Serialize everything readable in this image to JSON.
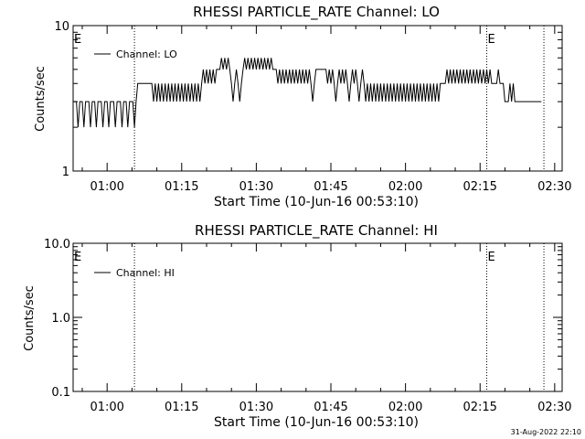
{
  "footer": {
    "stamp": "31-Aug-2022 22:10"
  },
  "chart_data": [
    {
      "type": "line",
      "title": "RHESSI PARTICLE_RATE Channel: LO",
      "xlabel": "Start Time (10-Jun-16 00:53:10)",
      "ylabel": "Counts/sec",
      "ylog": true,
      "ylim": [
        1,
        10
      ],
      "xlim": [
        "00:53:10",
        "02:31:30"
      ],
      "x_ticks": [
        "01:00",
        "01:15",
        "01:30",
        "01:45",
        "02:00",
        "02:15",
        "02:30"
      ],
      "y_ticks": [
        "1",
        "10"
      ],
      "legend": {
        "label": "Channel: LO",
        "position": "top-left"
      },
      "markers": [
        {
          "label": "E",
          "time": "00:53:10"
        },
        {
          "label": "E",
          "time": "02:16:20"
        }
      ],
      "vertical_lines": [
        "01:05:30",
        "02:16:20",
        "02:27:50"
      ],
      "series": [
        {
          "name": "Channel: LO",
          "points": [
            [
              "00:53:10",
              3
            ],
            [
              "00:53:50",
              3
            ],
            [
              "00:54:10",
              2
            ],
            [
              "00:54:30",
              3
            ],
            [
              "00:55:00",
              3
            ],
            [
              "00:55:20",
              2
            ],
            [
              "00:55:40",
              3
            ],
            [
              "00:56:20",
              3
            ],
            [
              "00:56:40",
              2
            ],
            [
              "00:57:00",
              3
            ],
            [
              "00:57:30",
              3
            ],
            [
              "00:57:50",
              2
            ],
            [
              "00:58:10",
              3
            ],
            [
              "00:58:50",
              3
            ],
            [
              "00:59:10",
              2
            ],
            [
              "00:59:30",
              3
            ],
            [
              "01:00:00",
              3
            ],
            [
              "01:00:20",
              2
            ],
            [
              "01:00:40",
              3
            ],
            [
              "01:01:20",
              3
            ],
            [
              "01:01:40",
              2
            ],
            [
              "01:02:00",
              3
            ],
            [
              "01:02:40",
              3
            ],
            [
              "01:03:00",
              2
            ],
            [
              "01:03:20",
              3
            ],
            [
              "01:03:50",
              3
            ],
            [
              "01:04:10",
              2
            ],
            [
              "01:04:30",
              3
            ],
            [
              "01:05:10",
              3
            ],
            [
              "01:05:30",
              2
            ],
            [
              "01:05:50",
              3
            ],
            [
              "01:06:10",
              4
            ],
            [
              "01:09:00",
              4
            ],
            [
              "01:09:20",
              3
            ],
            [
              "01:09:40",
              4
            ],
            [
              "01:10:00",
              3
            ],
            [
              "01:10:20",
              4
            ],
            [
              "01:10:40",
              3
            ],
            [
              "01:11:00",
              4
            ],
            [
              "01:11:20",
              3
            ],
            [
              "01:11:40",
              4
            ],
            [
              "01:12:00",
              3
            ],
            [
              "01:12:20",
              4
            ],
            [
              "01:12:40",
              3
            ],
            [
              "01:13:00",
              4
            ],
            [
              "01:13:20",
              3
            ],
            [
              "01:13:40",
              4
            ],
            [
              "01:14:00",
              3
            ],
            [
              "01:14:20",
              4
            ],
            [
              "01:14:40",
              3
            ],
            [
              "01:15:00",
              4
            ],
            [
              "01:15:20",
              3
            ],
            [
              "01:15:40",
              4
            ],
            [
              "01:16:00",
              3
            ],
            [
              "01:16:20",
              4
            ],
            [
              "01:16:40",
              3
            ],
            [
              "01:17:00",
              4
            ],
            [
              "01:17:20",
              3
            ],
            [
              "01:17:40",
              4
            ],
            [
              "01:18:00",
              3
            ],
            [
              "01:18:20",
              4
            ],
            [
              "01:18:40",
              3
            ],
            [
              "01:19:00",
              4
            ],
            [
              "01:19:20",
              5
            ],
            [
              "01:19:40",
              4
            ],
            [
              "01:20:00",
              5
            ],
            [
              "01:20:20",
              4
            ],
            [
              "01:20:40",
              5
            ],
            [
              "01:21:00",
              4
            ],
            [
              "01:21:20",
              5
            ],
            [
              "01:21:40",
              4
            ],
            [
              "01:22:00",
              5
            ],
            [
              "01:22:40",
              5
            ],
            [
              "01:23:00",
              6
            ],
            [
              "01:23:20",
              5
            ],
            [
              "01:23:40",
              6
            ],
            [
              "01:24:00",
              5
            ],
            [
              "01:24:20",
              6
            ],
            [
              "01:24:40",
              5
            ],
            [
              "01:25:00",
              4
            ],
            [
              "01:25:20",
              3
            ],
            [
              "01:25:40",
              4
            ],
            [
              "01:26:00",
              5
            ],
            [
              "01:26:20",
              4
            ],
            [
              "01:26:40",
              3
            ],
            [
              "01:27:00",
              4
            ],
            [
              "01:27:20",
              5
            ],
            [
              "01:27:40",
              6
            ],
            [
              "01:28:00",
              5
            ],
            [
              "01:28:20",
              6
            ],
            [
              "01:28:40",
              5
            ],
            [
              "01:29:00",
              6
            ],
            [
              "01:29:20",
              5
            ],
            [
              "01:29:40",
              6
            ],
            [
              "01:30:00",
              5
            ],
            [
              "01:30:20",
              6
            ],
            [
              "01:30:40",
              5
            ],
            [
              "01:31:00",
              6
            ],
            [
              "01:31:20",
              5
            ],
            [
              "01:31:40",
              6
            ],
            [
              "01:32:00",
              5
            ],
            [
              "01:32:20",
              6
            ],
            [
              "01:32:40",
              5
            ],
            [
              "01:33:00",
              6
            ],
            [
              "01:33:20",
              5
            ],
            [
              "01:34:00",
              5
            ],
            [
              "01:34:20",
              4
            ],
            [
              "01:34:40",
              5
            ],
            [
              "01:35:00",
              4
            ],
            [
              "01:35:20",
              5
            ],
            [
              "01:35:40",
              4
            ],
            [
              "01:36:00",
              5
            ],
            [
              "01:36:20",
              4
            ],
            [
              "01:36:40",
              5
            ],
            [
              "01:37:00",
              4
            ],
            [
              "01:37:20",
              5
            ],
            [
              "01:37:40",
              4
            ],
            [
              "01:38:00",
              5
            ],
            [
              "01:38:20",
              4
            ],
            [
              "01:38:40",
              5
            ],
            [
              "01:39:00",
              4
            ],
            [
              "01:39:20",
              5
            ],
            [
              "01:39:40",
              4
            ],
            [
              "01:40:00",
              5
            ],
            [
              "01:40:20",
              4
            ],
            [
              "01:40:40",
              5
            ],
            [
              "01:41:00",
              4
            ],
            [
              "01:41:20",
              3
            ],
            [
              "01:41:40",
              4
            ],
            [
              "01:42:00",
              5
            ],
            [
              "01:44:00",
              5
            ],
            [
              "01:44:20",
              4
            ],
            [
              "01:44:40",
              5
            ],
            [
              "01:45:00",
              4
            ],
            [
              "01:45:20",
              5
            ],
            [
              "01:45:40",
              4
            ],
            [
              "01:46:00",
              3
            ],
            [
              "01:46:20",
              4
            ],
            [
              "01:46:40",
              5
            ],
            [
              "01:47:00",
              4
            ],
            [
              "01:47:20",
              5
            ],
            [
              "01:47:40",
              4
            ],
            [
              "01:48:00",
              5
            ],
            [
              "01:48:20",
              4
            ],
            [
              "01:48:40",
              3
            ],
            [
              "01:49:00",
              4
            ],
            [
              "01:49:20",
              5
            ],
            [
              "01:49:40",
              4
            ],
            [
              "01:50:00",
              5
            ],
            [
              "01:50:20",
              4
            ],
            [
              "01:50:40",
              3
            ],
            [
              "01:51:00",
              4
            ],
            [
              "01:51:20",
              5
            ],
            [
              "01:51:40",
              4
            ],
            [
              "01:52:00",
              3
            ],
            [
              "01:52:20",
              4
            ],
            [
              "01:52:40",
              3
            ],
            [
              "01:53:00",
              4
            ],
            [
              "01:53:20",
              3
            ],
            [
              "01:53:40",
              4
            ],
            [
              "01:54:00",
              3
            ],
            [
              "01:54:20",
              4
            ],
            [
              "01:54:40",
              3
            ],
            [
              "01:55:00",
              4
            ],
            [
              "01:55:20",
              3
            ],
            [
              "01:55:40",
              4
            ],
            [
              "01:56:00",
              3
            ],
            [
              "01:56:20",
              4
            ],
            [
              "01:56:40",
              3
            ],
            [
              "01:57:00",
              4
            ],
            [
              "01:57:20",
              3
            ],
            [
              "01:57:40",
              4
            ],
            [
              "01:58:00",
              3
            ],
            [
              "01:58:20",
              4
            ],
            [
              "01:58:40",
              3
            ],
            [
              "01:59:00",
              4
            ],
            [
              "01:59:20",
              3
            ],
            [
              "01:59:40",
              4
            ],
            [
              "02:00:00",
              3
            ],
            [
              "02:00:20",
              4
            ],
            [
              "02:00:40",
              3
            ],
            [
              "02:01:00",
              4
            ],
            [
              "02:01:20",
              3
            ],
            [
              "02:01:40",
              4
            ],
            [
              "02:02:00",
              3
            ],
            [
              "02:02:20",
              4
            ],
            [
              "02:02:40",
              3
            ],
            [
              "02:03:00",
              4
            ],
            [
              "02:03:20",
              3
            ],
            [
              "02:03:40",
              4
            ],
            [
              "02:04:00",
              3
            ],
            [
              "02:04:20",
              4
            ],
            [
              "02:04:40",
              3
            ],
            [
              "02:05:00",
              4
            ],
            [
              "02:05:20",
              3
            ],
            [
              "02:05:40",
              4
            ],
            [
              "02:06:00",
              3
            ],
            [
              "02:06:20",
              4
            ],
            [
              "02:06:40",
              3
            ],
            [
              "02:07:00",
              4
            ],
            [
              "02:08:00",
              4
            ],
            [
              "02:08:20",
              5
            ],
            [
              "02:08:40",
              4
            ],
            [
              "02:09:00",
              5
            ],
            [
              "02:09:20",
              4
            ],
            [
              "02:09:40",
              5
            ],
            [
              "02:10:00",
              4
            ],
            [
              "02:10:20",
              5
            ],
            [
              "02:10:40",
              4
            ],
            [
              "02:11:00",
              5
            ],
            [
              "02:11:20",
              4
            ],
            [
              "02:11:40",
              5
            ],
            [
              "02:12:00",
              4
            ],
            [
              "02:12:20",
              5
            ],
            [
              "02:12:40",
              4
            ],
            [
              "02:13:00",
              5
            ],
            [
              "02:13:20",
              4
            ],
            [
              "02:13:40",
              5
            ],
            [
              "02:14:00",
              4
            ],
            [
              "02:14:20",
              5
            ],
            [
              "02:14:40",
              4
            ],
            [
              "02:15:00",
              5
            ],
            [
              "02:15:20",
              4
            ],
            [
              "02:15:40",
              5
            ],
            [
              "02:16:00",
              4
            ],
            [
              "02:16:20",
              5
            ],
            [
              "02:16:40",
              4
            ],
            [
              "02:17:00",
              5
            ],
            [
              "02:17:20",
              4
            ],
            [
              "02:18:20",
              4
            ],
            [
              "02:18:40",
              5
            ],
            [
              "02:19:00",
              4
            ],
            [
              "02:19:40",
              4
            ],
            [
              "02:20:00",
              3
            ],
            [
              "02:20:40",
              3
            ],
            [
              "02:21:00",
              4
            ],
            [
              "02:21:20",
              3
            ],
            [
              "02:21:40",
              4
            ],
            [
              "02:22:00",
              3
            ],
            [
              "02:23:00",
              3
            ],
            [
              "02:27:20",
              3
            ]
          ]
        }
      ]
    },
    {
      "type": "line",
      "title": "RHESSI PARTICLE_RATE Channel: HI",
      "xlabel": "Start Time (10-Jun-16 00:53:10)",
      "ylabel": "Counts/sec",
      "ylog": true,
      "ylim": [
        0.1,
        10
      ],
      "xlim": [
        "00:53:10",
        "02:31:30"
      ],
      "x_ticks": [
        "01:00",
        "01:15",
        "01:30",
        "01:45",
        "02:00",
        "02:15",
        "02:30"
      ],
      "y_ticks": [
        "0.1",
        "1.0",
        "10.0"
      ],
      "legend": {
        "label": "Channel: HI",
        "position": "top-left"
      },
      "markers": [
        {
          "label": "E",
          "time": "00:53:10"
        },
        {
          "label": "E",
          "time": "02:16:20"
        }
      ],
      "vertical_lines": [
        "01:05:30",
        "02:16:20",
        "02:27:50"
      ],
      "series": [
        {
          "name": "Channel: HI",
          "points": []
        }
      ]
    }
  ]
}
